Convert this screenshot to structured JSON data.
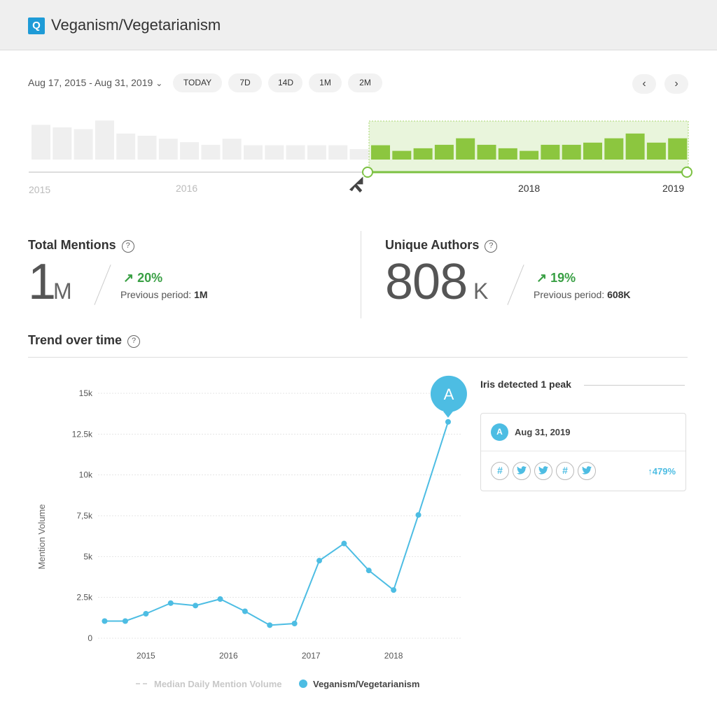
{
  "header": {
    "badge": "Q",
    "title": "Veganism/Vegetarianism"
  },
  "toolbar": {
    "date_range": "Aug 17, 2015 - Aug 31, 2019",
    "chevron": "⌄",
    "pills": [
      "TODAY",
      "7D",
      "14D",
      "1M",
      "2M"
    ],
    "prev": "‹",
    "next": "›"
  },
  "timeline": {
    "labels": [
      "2015",
      "2016",
      "2018",
      "2019"
    ],
    "bars_unselected": [
      0.8,
      0.74,
      0.7,
      0.9,
      0.6,
      0.55,
      0.48,
      0.4,
      0.34,
      0.48,
      0.33,
      0.33,
      0.33,
      0.33,
      0.33,
      0.24
    ],
    "bars_selected": [
      0.33,
      0.2,
      0.26,
      0.34,
      0.49,
      0.34,
      0.26,
      0.2,
      0.34,
      0.34,
      0.39,
      0.49,
      0.6,
      0.39,
      0.49
    ],
    "colors": {
      "unselected": "#efefef",
      "selected": "#8cc63f",
      "selected_bg": "#e9f5dc",
      "line": "#7cc142",
      "track": "#dddddd"
    }
  },
  "stats": {
    "mentions": {
      "title": "Total Mentions",
      "value": "1",
      "unit": "M",
      "change": "20%",
      "prev_label": "Previous period:",
      "prev_value": "1M"
    },
    "authors": {
      "title": "Unique Authors",
      "value": "808",
      "unit": "K",
      "change": "19%",
      "prev_label": "Previous period:",
      "prev_value": "608K"
    },
    "help": "?",
    "arrow": "↗"
  },
  "trend": {
    "title": "Trend over time"
  },
  "chart_data": {
    "type": "line",
    "ylabel": "Mention Volume",
    "xlabel": "",
    "yticks": [
      "0",
      "2.5k",
      "5k",
      "7,5k",
      "10k",
      "12.5k",
      "15k"
    ],
    "ylim": [
      0,
      15000
    ],
    "xticks": [
      {
        "label": "2015",
        "x": 2015.0
      },
      {
        "label": "2016",
        "x": 2016.0
      },
      {
        "label": "2017",
        "x": 2017.0
      },
      {
        "label": "2018",
        "x": 2018.0
      }
    ],
    "xlim": [
      2014.42,
      2018.83
    ],
    "grid": true,
    "series": [
      {
        "name": "Veganism/Vegetarianism",
        "color": "#4dbde3",
        "x": [
          2014.5,
          2014.75,
          2015.0,
          2015.3,
          2015.6,
          2015.9,
          2016.2,
          2016.5,
          2016.8,
          2017.1,
          2017.4,
          2017.7,
          2018.0,
          2018.3,
          2018.66
        ],
        "y": [
          1050,
          1050,
          1500,
          2150,
          2000,
          2400,
          1650,
          800,
          900,
          4750,
          5800,
          4150,
          2950,
          7550,
          13250
        ]
      }
    ],
    "median_label": "Median Daily Mention Volume",
    "peak": {
      "label": "A",
      "index": 14
    }
  },
  "peak_panel": {
    "title": "Iris detected 1 peak",
    "badge": "A",
    "date": "Aug 31, 2019",
    "icons": [
      {
        "name": "hashtag-icon",
        "glyph": "#"
      },
      {
        "name": "twitter-icon",
        "glyph": "t"
      },
      {
        "name": "twitter-icon",
        "glyph": "t"
      },
      {
        "name": "hashtag-icon",
        "glyph": "#"
      },
      {
        "name": "twitter-icon",
        "glyph": "t"
      }
    ],
    "change": "↑479%"
  }
}
